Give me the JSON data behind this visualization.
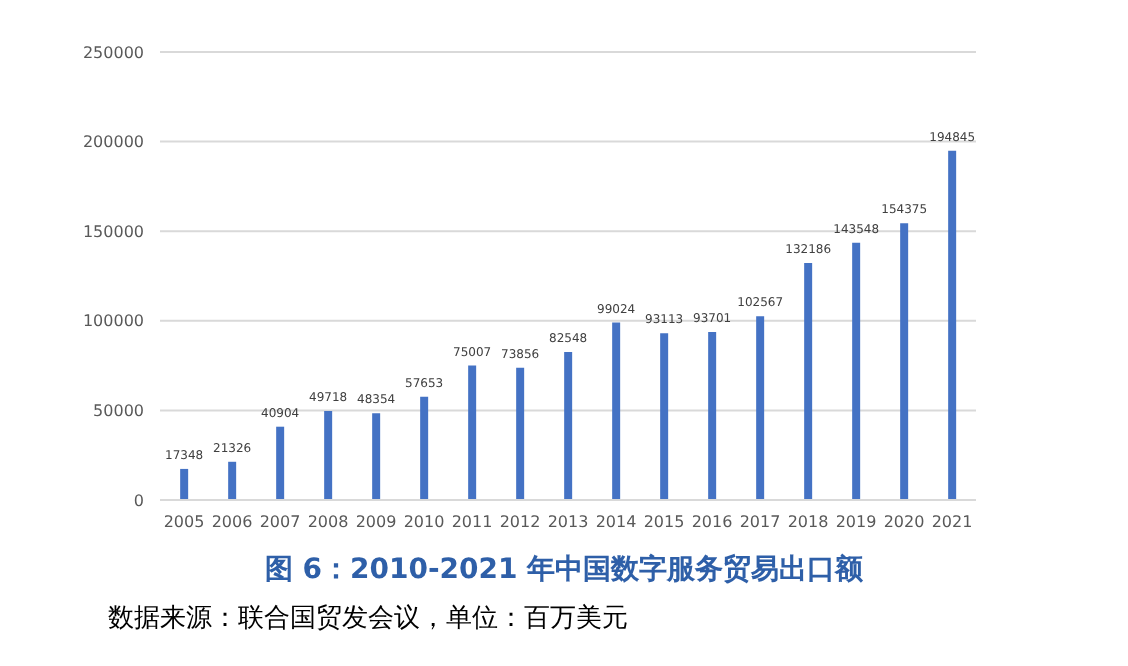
{
  "chart_data": {
    "type": "bar",
    "title": "图 6：2010-2021 年中国数字服务贸易出口额",
    "annotations": [
      "数据来源：联合国贸发会议，单位：百万美元"
    ],
    "categories": [
      "2005",
      "2006",
      "2007",
      "2008",
      "2009",
      "2010",
      "2011",
      "2012",
      "2013",
      "2014",
      "2015",
      "2016",
      "2017",
      "2018",
      "2019",
      "2020",
      "2021"
    ],
    "values": [
      17348,
      21326,
      40904,
      49718,
      48354,
      57653,
      75007,
      73856,
      82548,
      99024,
      93113,
      93701,
      102567,
      132186,
      143548,
      154375,
      194845
    ],
    "color": "#4472c4",
    "ylim": [
      0,
      250000
    ],
    "yticks": [
      0,
      50000,
      100000,
      150000,
      200000,
      250000
    ],
    "grid": "y",
    "data_labels": true
  }
}
